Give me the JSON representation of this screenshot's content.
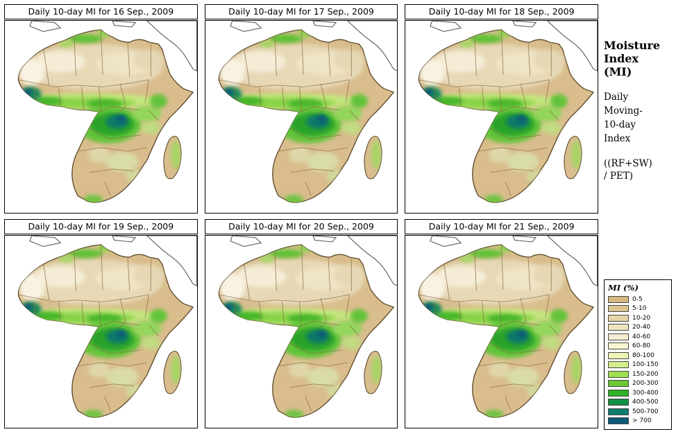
{
  "panels": [
    {
      "title": "Daily 10-day MI for 16 Sep., 2009"
    },
    {
      "title": "Daily 10-day MI for 17 Sep., 2009"
    },
    {
      "title": "Daily 10-day MI for 18 Sep., 2009"
    },
    {
      "title": "Daily 10-day MI for 19 Sep., 2009"
    },
    {
      "title": "Daily 10-day MI for 20 Sep., 2009"
    },
    {
      "title": "Daily 10-day MI for 21 Sep., 2009"
    }
  ],
  "sidebar": {
    "title": "Moisture\nIndex\n(MI)",
    "subtitle": "Daily\nMoving-\n10-day\nIndex",
    "formula": "((RF+SW)\n / PET)"
  },
  "legend": {
    "title": "MI (%)",
    "entries": [
      {
        "label": "0-5",
        "color": "#d6b87f"
      },
      {
        "label": "5-10",
        "color": "#ddc592"
      },
      {
        "label": "10-20",
        "color": "#e6d4a7"
      },
      {
        "label": "20-40",
        "color": "#efe3bf"
      },
      {
        "label": "40-60",
        "color": "#f6eed4"
      },
      {
        "label": "60-80",
        "color": "#f8f6d0"
      },
      {
        "label": "80-100",
        "color": "#eef5b4"
      },
      {
        "label": "100-150",
        "color": "#d4ee8e"
      },
      {
        "label": "150-200",
        "color": "#9ee04e"
      },
      {
        "label": "200-300",
        "color": "#6cc832"
      },
      {
        "label": "300-400",
        "color": "#2eb224"
      },
      {
        "label": "400-500",
        "color": "#149044"
      },
      {
        "label": "500-700",
        "color": "#0e7d6e"
      },
      {
        "label": "> 700",
        "color": "#0d5a78"
      }
    ]
  }
}
